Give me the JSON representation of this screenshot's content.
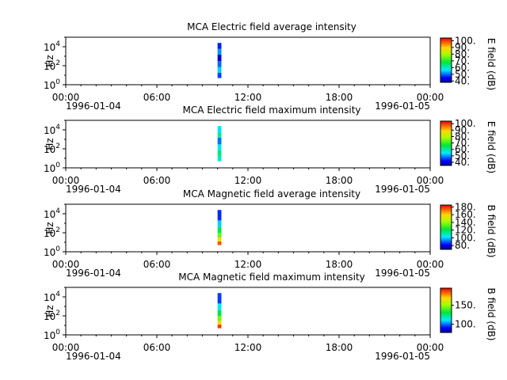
{
  "chart_data": [
    {
      "type": "heatmap",
      "title": "MCA  Electric field average intensity",
      "ylabel": "Hz",
      "ylim": [
        1,
        100000
      ],
      "yscale": "log",
      "ytick_labels": [
        "10^0",
        "10^2",
        "10^4"
      ],
      "xlim": [
        "1996-01-04T00:00",
        "1996-01-05T00:00"
      ],
      "xtick_labels": [
        "00:00",
        "06:00",
        "12:00",
        "18:00",
        "00:00"
      ],
      "xdate_labels": [
        "1996-01-04",
        "1996-01-05"
      ],
      "colorbar": {
        "label": "E field (dB)",
        "range": [
          38,
          104
        ],
        "tick_values": [
          40,
          50,
          60,
          70,
          80,
          90,
          100
        ],
        "tick_labels": [
          "40.",
          "50.",
          "60.",
          "70.",
          "80.",
          "90.",
          "100."
        ]
      },
      "data_span": {
        "time": [
          "1996-01-04T10:00",
          "1996-01-04T10:15"
        ],
        "freq_hz": [
          5,
          25000
        ]
      },
      "cells": [
        {
          "f0": 5,
          "f1": 18,
          "value": 48
        },
        {
          "f0": 18,
          "f1": 70,
          "value": 55
        },
        {
          "f0": 70,
          "f1": 300,
          "value": 50
        },
        {
          "f0": 300,
          "f1": 1500,
          "value": 42
        },
        {
          "f0": 1500,
          "f1": 6000,
          "value": 52
        },
        {
          "f0": 6000,
          "f1": 25000,
          "value": 46
        }
      ]
    },
    {
      "type": "heatmap",
      "title": "MCA  Electric field maximum intensity",
      "ylabel": "Hz",
      "ylim": [
        1,
        100000
      ],
      "yscale": "log",
      "ytick_labels": [
        "10^0",
        "10^2",
        "10^4"
      ],
      "xlim": [
        "1996-01-04T00:00",
        "1996-01-05T00:00"
      ],
      "xtick_labels": [
        "00:00",
        "06:00",
        "12:00",
        "18:00",
        "00:00"
      ],
      "xdate_labels": [
        "1996-01-04",
        "1996-01-05"
      ],
      "colorbar": {
        "label": "E field (dB)",
        "range": [
          35,
          104
        ],
        "tick_values": [
          40,
          50,
          60,
          70,
          80,
          90,
          100
        ],
        "tick_labels": [
          "40.",
          "50.",
          "60.",
          "70.",
          "80.",
          "90.",
          "100."
        ]
      },
      "data_span": {
        "time": [
          "1996-01-04T10:00",
          "1996-01-04T10:15"
        ],
        "freq_hz": [
          5,
          25000
        ]
      },
      "cells": [
        {
          "f0": 5,
          "f1": 18,
          "value": 58
        },
        {
          "f0": 18,
          "f1": 70,
          "value": 62
        },
        {
          "f0": 70,
          "f1": 300,
          "value": 56
        },
        {
          "f0": 300,
          "f1": 1500,
          "value": 48
        },
        {
          "f0": 1500,
          "f1": 6000,
          "value": 60
        },
        {
          "f0": 6000,
          "f1": 25000,
          "value": 54
        }
      ]
    },
    {
      "type": "heatmap",
      "title": "MCA  Magnetic field average intensity",
      "ylabel": "Hz",
      "ylim": [
        1,
        100000
      ],
      "yscale": "log",
      "ytick_labels": [
        "10^0",
        "10^2",
        "10^4"
      ],
      "xlim": [
        "1996-01-04T00:00",
        "1996-01-05T00:00"
      ],
      "xtick_labels": [
        "00:00",
        "06:00",
        "12:00",
        "18:00",
        "00:00"
      ],
      "xdate_labels": [
        "1996-01-04",
        "1996-01-05"
      ],
      "colorbar": {
        "label": "B field (dB)",
        "range": [
          70,
          185
        ],
        "tick_values": [
          80,
          100,
          120,
          140,
          160,
          180
        ],
        "tick_labels": [
          "80.",
          "100.",
          "120.",
          "140.",
          "160.",
          "180."
        ]
      },
      "data_span": {
        "time": [
          "1996-01-04T10:00",
          "1996-01-04T10:15"
        ],
        "freq_hz": [
          5,
          25000
        ]
      },
      "cells": [
        {
          "f0": 5,
          "f1": 12,
          "value": 175
        },
        {
          "f0": 12,
          "f1": 30,
          "value": 160
        },
        {
          "f0": 30,
          "f1": 100,
          "value": 135
        },
        {
          "f0": 100,
          "f1": 400,
          "value": 120
        },
        {
          "f0": 400,
          "f1": 2000,
          "value": 100
        },
        {
          "f0": 2000,
          "f1": 25000,
          "value": 85
        }
      ]
    },
    {
      "type": "heatmap",
      "title": "MCA  Magnetic field maximum intensity",
      "ylabel": "Hz",
      "ylim": [
        1,
        100000
      ],
      "yscale": "log",
      "ytick_labels": [
        "10^0",
        "10^2",
        "10^4"
      ],
      "xlim": [
        "1996-01-04T00:00",
        "1996-01-05T00:00"
      ],
      "xtick_labels": [
        "00:00",
        "06:00",
        "12:00",
        "18:00",
        "00:00"
      ],
      "xdate_labels": [
        "1996-01-04",
        "1996-01-05"
      ],
      "colorbar": {
        "label": "B field (dB)",
        "range": [
          78,
          195
        ],
        "tick_values": [
          100,
          150
        ],
        "tick_labels": [
          "100.",
          "150."
        ]
      },
      "data_span": {
        "time": [
          "1996-01-04T10:00",
          "1996-01-04T10:15"
        ],
        "freq_hz": [
          5,
          25000
        ]
      },
      "cells": [
        {
          "f0": 5,
          "f1": 12,
          "value": 188
        },
        {
          "f0": 12,
          "f1": 30,
          "value": 170
        },
        {
          "f0": 30,
          "f1": 100,
          "value": 145
        },
        {
          "f0": 100,
          "f1": 400,
          "value": 130
        },
        {
          "f0": 400,
          "f1": 2000,
          "value": 112
        },
        {
          "f0": 2000,
          "f1": 25000,
          "value": 95
        }
      ]
    }
  ]
}
